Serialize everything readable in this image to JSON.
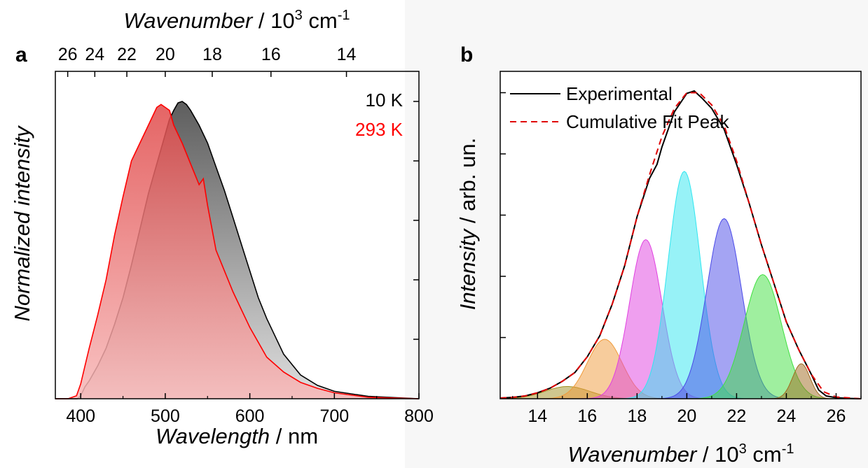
{
  "chart_data": [
    {
      "panel": "a",
      "type": "area",
      "xlabel": {
        "italic": "Wavelength",
        "rest": " / nm"
      },
      "x2label": {
        "italic": "Wavenumber",
        "rest": " / 10",
        "sup": "3",
        "rest2": " cm",
        "sup2": "-1"
      },
      "ylabel": "Normalized intensity",
      "xlim": [
        370,
        800
      ],
      "ylim": [
        0,
        1.0
      ],
      "xticks": [
        400,
        500,
        600,
        700,
        800
      ],
      "x2ticks": [
        26,
        24,
        22,
        20,
        18,
        16,
        14
      ],
      "yticks": [
        0.2,
        0.4,
        0.6,
        0.8,
        1.0
      ],
      "grid": false,
      "series": [
        {
          "name": "10 K",
          "color": "#000000",
          "fill_top": "#555555",
          "fill_bottom": "#dddddd",
          "x": [
            370,
            396,
            400,
            405,
            410,
            420,
            430,
            440,
            450,
            460,
            470,
            480,
            490,
            500,
            505,
            510,
            515,
            520,
            525,
            530,
            540,
            550,
            560,
            570,
            580,
            590,
            600,
            610,
            620,
            640,
            660,
            680,
            700,
            740,
            800
          ],
          "y": [
            0,
            0,
            0.01,
            0.04,
            0.06,
            0.11,
            0.17,
            0.25,
            0.34,
            0.45,
            0.57,
            0.69,
            0.79,
            0.89,
            0.94,
            0.97,
            0.995,
            1.0,
            0.99,
            0.97,
            0.92,
            0.86,
            0.78,
            0.7,
            0.61,
            0.52,
            0.43,
            0.34,
            0.27,
            0.15,
            0.08,
            0.045,
            0.025,
            0.008,
            0
          ]
        },
        {
          "name": "293 K",
          "color": "#ff0000",
          "fill_top": "#e04a4a",
          "fill_bottom": "#f7b8b8",
          "x": [
            370,
            385,
            395,
            400,
            405,
            410,
            420,
            430,
            440,
            450,
            460,
            470,
            480,
            490,
            495,
            500,
            505,
            510,
            520,
            530,
            540,
            545,
            550,
            560,
            570,
            580,
            590,
            600,
            610,
            620,
            640,
            660,
            680,
            700,
            740,
            800
          ],
          "y": [
            0,
            0,
            0.01,
            0.05,
            0.11,
            0.17,
            0.28,
            0.4,
            0.55,
            0.68,
            0.8,
            0.86,
            0.92,
            0.98,
            0.99,
            0.98,
            0.97,
            0.92,
            0.86,
            0.79,
            0.72,
            0.74,
            0.65,
            0.5,
            0.43,
            0.36,
            0.3,
            0.24,
            0.19,
            0.14,
            0.09,
            0.055,
            0.035,
            0.02,
            0.005,
            0
          ]
        }
      ]
    },
    {
      "panel": "b",
      "type": "area",
      "xlabel": {
        "italic": "Wavenumber",
        "rest": " / 10",
        "sup": "3",
        "rest2": " cm",
        "sup2": "-1"
      },
      "ylabel": {
        "italic": "Intensity",
        "rest": " / arb. un."
      },
      "xlim": [
        12.5,
        27
      ],
      "ylim": [
        0,
        1.0
      ],
      "xticks": [
        14,
        16,
        18,
        20,
        22,
        24,
        26
      ],
      "yticks": [
        0.175,
        0.35,
        0.525,
        0.7,
        0.875
      ],
      "grid": false,
      "legend": {
        "position": "top-left"
      },
      "series": [
        {
          "name": "Experimental",
          "color": "#000000",
          "style": "solid",
          "x": [
            12.5,
            13,
            13.5,
            14,
            14.5,
            15,
            15.5,
            16,
            16.5,
            17,
            17.5,
            18,
            18.5,
            18.8,
            19,
            19.5,
            20,
            20.3,
            20.6,
            21,
            21.5,
            22,
            22.5,
            23,
            23.5,
            24,
            24.5,
            25,
            25.3,
            25.6,
            26,
            26.5,
            27
          ],
          "y": [
            0.002,
            0.004,
            0.008,
            0.017,
            0.03,
            0.05,
            0.075,
            0.12,
            0.18,
            0.27,
            0.38,
            0.52,
            0.63,
            0.67,
            0.72,
            0.82,
            0.873,
            0.88,
            0.86,
            0.83,
            0.77,
            0.67,
            0.56,
            0.44,
            0.33,
            0.22,
            0.14,
            0.07,
            0.025,
            0.008,
            0.003,
            0.001,
            0
          ]
        },
        {
          "name": "Cumulative Fit Peak",
          "color": "#e00000",
          "style": "dashed",
          "x": [
            12.5,
            13,
            13.5,
            14,
            14.5,
            15,
            15.5,
            16,
            16.5,
            17,
            17.5,
            18,
            18.5,
            19,
            19.5,
            20,
            20.5,
            21,
            21.5,
            22,
            22.5,
            23,
            23.5,
            24,
            24.5,
            25,
            25.5,
            26,
            27
          ],
          "y": [
            0.002,
            0.004,
            0.008,
            0.017,
            0.03,
            0.05,
            0.075,
            0.12,
            0.18,
            0.27,
            0.38,
            0.52,
            0.64,
            0.75,
            0.83,
            0.875,
            0.875,
            0.84,
            0.78,
            0.68,
            0.56,
            0.44,
            0.33,
            0.22,
            0.14,
            0.07,
            0.02,
            0.005,
            0
          ]
        }
      ],
      "gaussian_peaks": [
        {
          "center": 15.2,
          "sigma": 0.9,
          "amplitude": 0.035,
          "color": "#a09020"
        },
        {
          "center": 16.7,
          "sigma": 0.7,
          "amplitude": 0.17,
          "color": "#f09a3a"
        },
        {
          "center": 18.35,
          "sigma": 0.65,
          "amplitude": 0.455,
          "color": "#e040e0"
        },
        {
          "center": 19.9,
          "sigma": 0.65,
          "amplitude": 0.65,
          "color": "#30e6f0"
        },
        {
          "center": 21.5,
          "sigma": 0.7,
          "amplitude": 0.515,
          "color": "#4a4ae8"
        },
        {
          "center": 23.05,
          "sigma": 0.75,
          "amplitude": 0.355,
          "color": "#40e040"
        },
        {
          "center": 24.6,
          "sigma": 0.35,
          "amplitude": 0.1,
          "color": "#a06a20"
        }
      ]
    }
  ]
}
